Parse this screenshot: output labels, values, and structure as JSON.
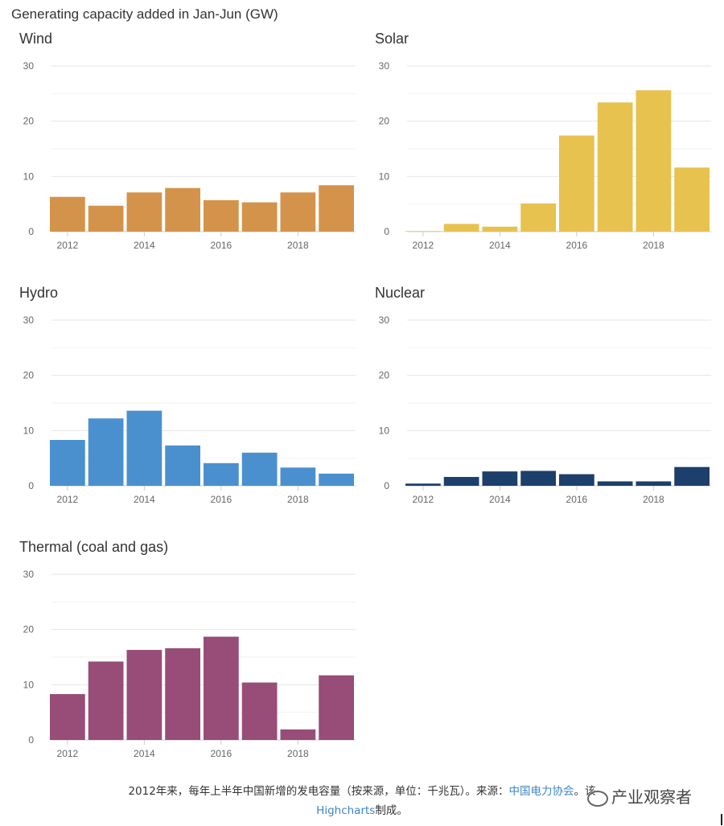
{
  "title": "Generating capacity added in Jan-Jun (GW)",
  "chart_data": [
    {
      "type": "bar",
      "title": "Wind",
      "color": "#d4934a",
      "x": [
        2012,
        2013,
        2014,
        2015,
        2016,
        2017,
        2018,
        2019
      ],
      "values": [
        6.3,
        4.7,
        7.1,
        7.9,
        5.7,
        5.3,
        7.1,
        8.4
      ],
      "ylim": [
        0,
        30
      ],
      "yticks": [
        0,
        10,
        20,
        30
      ],
      "xtick_labels": [
        "2012",
        "2014",
        "2016",
        "2018"
      ]
    },
    {
      "type": "bar",
      "title": "Solar",
      "color": "#e8c24e",
      "x": [
        2012,
        2013,
        2014,
        2015,
        2016,
        2017,
        2018,
        2019
      ],
      "values": [
        0.1,
        1.4,
        0.9,
        5.1,
        17.4,
        23.4,
        25.6,
        11.6
      ],
      "ylim": [
        0,
        30
      ],
      "yticks": [
        0,
        10,
        20,
        30
      ],
      "xtick_labels": [
        "2012",
        "2014",
        "2016",
        "2018"
      ]
    },
    {
      "type": "bar",
      "title": "Hydro",
      "color": "#4a90cf",
      "x": [
        2012,
        2013,
        2014,
        2015,
        2016,
        2017,
        2018,
        2019
      ],
      "values": [
        8.3,
        12.2,
        13.6,
        7.3,
        4.1,
        6.0,
        3.3,
        2.2
      ],
      "ylim": [
        0,
        30
      ],
      "yticks": [
        0,
        10,
        20,
        30
      ],
      "xtick_labels": [
        "2012",
        "2014",
        "2016",
        "2018"
      ]
    },
    {
      "type": "bar",
      "title": "Nuclear",
      "color": "#1c3f6b",
      "x": [
        2012,
        2013,
        2014,
        2015,
        2016,
        2017,
        2018,
        2019
      ],
      "values": [
        0.4,
        1.6,
        2.6,
        2.7,
        2.1,
        0.8,
        0.8,
        3.4
      ],
      "ylim": [
        0,
        30
      ],
      "yticks": [
        0,
        10,
        20,
        30
      ],
      "xtick_labels": [
        "2012",
        "2014",
        "2016",
        "2018"
      ]
    },
    {
      "type": "bar",
      "title": "Thermal (coal and gas)",
      "color": "#974d78",
      "x": [
        2012,
        2013,
        2014,
        2015,
        2016,
        2017,
        2018,
        2019
      ],
      "values": [
        8.3,
        14.2,
        16.3,
        16.6,
        18.7,
        10.4,
        1.9,
        11.7
      ],
      "ylim": [
        0,
        30
      ],
      "yticks": [
        0,
        10,
        20,
        30
      ],
      "xtick_labels": [
        "2012",
        "2014",
        "2016",
        "2018"
      ]
    }
  ],
  "caption": {
    "text_before": "2012年来，每年上半年中国新增的发电容量（按来源，单位：千兆瓦）。来源：",
    "source_link": "中国电力协会",
    "text_mid": "。该",
    "line2_link": "Highcharts",
    "line2_after": "制成。"
  },
  "watermark": "产业观察者",
  "style": {
    "grid_color": "#e6e6e6",
    "axis_color": "#cccccc",
    "tick_color": "#666666"
  }
}
